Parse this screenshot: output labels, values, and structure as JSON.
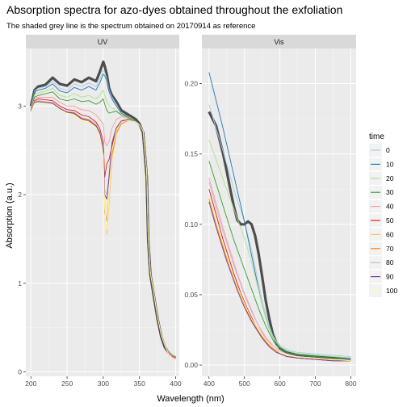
{
  "chart_data": {
    "type": "line",
    "title": "Absorption spectra for azo-dyes obtained throughout the exfoliation",
    "subtitle": "The shaded grey line is the spectrum obtained on 20170914 as reference",
    "xlabel": "Wavelength (nm)",
    "ylabel": "Absorption (a.u.)",
    "grid": true,
    "legend": {
      "title": "time",
      "position": "right",
      "entries": [
        "0",
        "10",
        "20",
        "30",
        "40",
        "50",
        "60",
        "70",
        "80",
        "90",
        "100"
      ]
    },
    "series_colors": {
      "0": "#a6cee3",
      "10": "#1f78b4",
      "20": "#b2df8a",
      "30": "#33a02c",
      "40": "#fb9a99",
      "50": "#e31a1c",
      "60": "#fdbf6f",
      "70": "#ff7f00",
      "80": "#cab2d6",
      "90": "#6a3d9a",
      "100": "#ffff99"
    },
    "reference_color": "#4d4d4d",
    "panels": [
      {
        "strip": "UV",
        "xlim": [
          193,
          405
        ],
        "ylim": [
          -0.05,
          3.65
        ],
        "xticks": [
          200,
          250,
          300,
          350,
          400
        ],
        "yticks": [
          0,
          1,
          2,
          3
        ],
        "x": [
          200,
          205,
          210,
          220,
          230,
          240,
          250,
          260,
          270,
          280,
          290,
          295,
          300,
          302,
          305,
          308,
          312,
          318,
          325,
          335,
          345,
          350,
          355,
          360,
          362,
          365,
          370,
          375,
          380,
          385,
          390,
          395,
          400
        ],
        "reference": [
          3.0,
          3.18,
          3.22,
          3.24,
          3.32,
          3.25,
          3.23,
          3.3,
          3.27,
          3.32,
          3.28,
          3.38,
          3.5,
          3.45,
          3.35,
          3.2,
          3.12,
          3.05,
          2.95,
          2.9,
          2.85,
          2.8,
          2.7,
          2.2,
          1.5,
          1.1,
          0.85,
          0.6,
          0.4,
          0.28,
          0.22,
          0.18,
          0.16
        ],
        "series": [
          {
            "name": "0",
            "values": [
              3.0,
              3.17,
              3.2,
              3.22,
              3.28,
              3.2,
              3.18,
              3.25,
              3.22,
              3.26,
              3.22,
              3.3,
              3.4,
              3.38,
              3.3,
              3.18,
              3.1,
              3.02,
              2.92,
              2.88,
              2.83,
              2.79,
              2.72,
              2.25,
              1.55,
              1.12,
              0.88,
              0.62,
              0.42,
              0.3,
              0.24,
              0.2,
              0.18
            ]
          },
          {
            "name": "10",
            "values": [
              3.0,
              3.16,
              3.18,
              3.2,
              3.25,
              3.17,
              3.15,
              3.21,
              3.18,
              3.22,
              3.18,
              3.26,
              3.36,
              3.34,
              3.28,
              3.16,
              3.08,
              3.0,
              2.92,
              2.88,
              2.83,
              2.79,
              2.72,
              2.25,
              1.55,
              1.12,
              0.88,
              0.62,
              0.42,
              0.3,
              0.23,
              0.19,
              0.17
            ]
          },
          {
            "name": "20",
            "values": [
              2.98,
              3.13,
              3.15,
              3.17,
              3.2,
              3.12,
              3.1,
              3.14,
              3.1,
              3.12,
              3.08,
              3.12,
              3.18,
              3.12,
              3.05,
              3.0,
              2.98,
              2.95,
              2.9,
              2.88,
              2.83,
              2.79,
              2.72,
              2.25,
              1.55,
              1.12,
              0.88,
              0.62,
              0.42,
              0.3,
              0.23,
              0.19,
              0.17
            ]
          },
          {
            "name": "30",
            "values": [
              2.97,
              3.1,
              3.12,
              3.14,
              3.16,
              3.08,
              3.06,
              3.08,
              3.05,
              3.06,
              3.02,
              3.04,
              3.08,
              3.02,
              2.95,
              2.92,
              2.93,
              2.94,
              2.9,
              2.87,
              2.83,
              2.79,
              2.72,
              2.25,
              1.55,
              1.12,
              0.88,
              0.62,
              0.42,
              0.3,
              0.22,
              0.18,
              0.16
            ]
          },
          {
            "name": "40",
            "values": [
              2.96,
              3.08,
              3.1,
              3.1,
              3.1,
              3.04,
              3.0,
              3.0,
              2.96,
              2.95,
              2.9,
              2.85,
              2.8,
              2.6,
              2.55,
              2.6,
              2.75,
              2.85,
              2.88,
              2.86,
              2.82,
              2.79,
              2.72,
              2.25,
              1.55,
              1.12,
              0.88,
              0.62,
              0.42,
              0.3,
              0.22,
              0.18,
              0.16
            ]
          },
          {
            "name": "50",
            "values": [
              2.95,
              3.06,
              3.08,
              3.07,
              3.06,
              3.0,
              2.96,
              2.95,
              2.9,
              2.88,
              2.82,
              2.75,
              2.6,
              2.2,
              2.35,
              2.4,
              2.55,
              2.72,
              2.82,
              2.85,
              2.82,
              2.79,
              2.72,
              2.25,
              1.55,
              1.12,
              0.88,
              0.62,
              0.42,
              0.3,
              0.22,
              0.18,
              0.16
            ]
          },
          {
            "name": "60",
            "values": [
              2.94,
              3.05,
              3.06,
              3.05,
              3.04,
              2.98,
              2.94,
              2.92,
              2.86,
              2.84,
              2.78,
              2.7,
              2.5,
              1.9,
              1.55,
              1.9,
              2.4,
              2.68,
              2.8,
              2.84,
              2.82,
              2.79,
              2.72,
              2.25,
              1.55,
              1.12,
              0.88,
              0.62,
              0.42,
              0.3,
              0.21,
              0.17,
              0.15
            ]
          },
          {
            "name": "70",
            "values": [
              2.94,
              3.04,
              3.05,
              3.04,
              3.03,
              2.97,
              2.93,
              2.91,
              2.85,
              2.83,
              2.77,
              2.68,
              2.45,
              1.8,
              1.7,
              2.0,
              2.45,
              2.7,
              2.8,
              2.84,
              2.82,
              2.79,
              2.72,
              2.25,
              1.55,
              1.12,
              0.88,
              0.62,
              0.42,
              0.3,
              0.21,
              0.17,
              0.15
            ]
          },
          {
            "name": "80",
            "values": [
              2.95,
              3.05,
              3.06,
              3.05,
              3.04,
              2.98,
              2.94,
              2.93,
              2.87,
              2.85,
              2.8,
              2.72,
              2.55,
              2.05,
              2.0,
              2.25,
              2.6,
              2.76,
              2.84,
              2.85,
              2.82,
              2.79,
              2.72,
              2.25,
              1.55,
              1.12,
              0.88,
              0.62,
              0.42,
              0.3,
              0.21,
              0.17,
              0.15
            ]
          },
          {
            "name": "90",
            "values": [
              2.94,
              3.04,
              3.05,
              3.04,
              3.03,
              2.97,
              2.93,
              2.92,
              2.86,
              2.84,
              2.78,
              2.7,
              2.52,
              2.0,
              1.95,
              2.2,
              2.58,
              2.75,
              2.83,
              2.85,
              2.82,
              2.79,
              2.72,
              2.25,
              1.55,
              1.12,
              0.88,
              0.62,
              0.42,
              0.3,
              0.2,
              0.16,
              0.14
            ]
          },
          {
            "name": "100",
            "values": [
              2.93,
              3.03,
              3.04,
              3.03,
              3.02,
              2.96,
              2.92,
              2.9,
              2.84,
              2.82,
              2.76,
              2.67,
              2.45,
              1.85,
              1.6,
              2.0,
              2.5,
              2.72,
              2.82,
              2.84,
              2.82,
              2.79,
              2.72,
              2.25,
              1.55,
              1.12,
              0.88,
              0.62,
              0.42,
              0.3,
              0.2,
              0.16,
              0.14
            ]
          }
        ]
      },
      {
        "strip": "Vis",
        "xlim": [
          380,
          815
        ],
        "ylim": [
          -0.008,
          0.225
        ],
        "xticks": [
          400,
          500,
          600,
          700,
          800
        ],
        "yticks": [
          0.0,
          0.05,
          0.1,
          0.15,
          0.2
        ],
        "x": [
          400,
          410,
          420,
          430,
          440,
          450,
          460,
          470,
          480,
          490,
          500,
          510,
          520,
          530,
          540,
          550,
          560,
          570,
          580,
          590,
          600,
          620,
          650,
          700,
          750,
          800
        ],
        "reference": [
          0.18,
          0.175,
          0.17,
          0.16,
          0.15,
          0.138,
          0.125,
          0.113,
          0.103,
          0.1,
          0.1,
          0.102,
          0.1,
          0.092,
          0.079,
          0.063,
          0.046,
          0.033,
          0.022,
          0.016,
          0.012,
          0.009,
          0.007,
          0.006,
          0.005,
          0.004
        ],
        "series": [
          {
            "name": "0",
            "values": [
              0.185,
              0.177,
              0.168,
              0.16,
              0.152,
              0.143,
              0.134,
              0.125,
              0.117,
              0.11,
              0.102,
              0.092,
              0.082,
              0.07,
              0.058,
              0.046,
              0.036,
              0.028,
              0.021,
              0.017,
              0.014,
              0.011,
              0.009,
              0.008,
              0.007,
              0.006
            ]
          },
          {
            "name": "10",
            "values": [
              0.208,
              0.198,
              0.188,
              0.178,
              0.168,
              0.157,
              0.146,
              0.135,
              0.124,
              0.113,
              0.102,
              0.09,
              0.078,
              0.066,
              0.054,
              0.043,
              0.034,
              0.026,
              0.02,
              0.016,
              0.013,
              0.01,
              0.008,
              0.007,
              0.006,
              0.005
            ]
          },
          {
            "name": "20",
            "values": [
              0.16,
              0.153,
              0.146,
              0.139,
              0.132,
              0.125,
              0.118,
              0.111,
              0.104,
              0.097,
              0.09,
              0.082,
              0.073,
              0.063,
              0.053,
              0.043,
              0.034,
              0.026,
              0.02,
              0.016,
              0.013,
              0.01,
              0.008,
              0.007,
              0.006,
              0.005
            ]
          },
          {
            "name": "30",
            "values": [
              0.145,
              0.137,
              0.129,
              0.121,
              0.113,
              0.105,
              0.097,
              0.089,
              0.082,
              0.075,
              0.068,
              0.061,
              0.054,
              0.047,
              0.04,
              0.034,
              0.028,
              0.023,
              0.018,
              0.014,
              0.012,
              0.009,
              0.007,
              0.006,
              0.005,
              0.004
            ]
          },
          {
            "name": "40",
            "values": [
              0.133,
              0.124,
              0.115,
              0.106,
              0.097,
              0.089,
              0.081,
              0.073,
              0.065,
              0.058,
              0.051,
              0.045,
              0.039,
              0.033,
              0.028,
              0.023,
              0.019,
              0.016,
              0.013,
              0.011,
              0.009,
              0.007,
              0.005,
              0.004,
              0.004,
              0.003
            ]
          },
          {
            "name": "50",
            "values": [
              0.125,
              0.116,
              0.107,
              0.098,
              0.089,
              0.081,
              0.073,
              0.065,
              0.058,
              0.051,
              0.045,
              0.039,
              0.034,
              0.029,
              0.025,
              0.021,
              0.017,
              0.014,
              0.012,
              0.01,
              0.008,
              0.006,
              0.005,
              0.004,
              0.003,
              0.003
            ]
          },
          {
            "name": "60",
            "values": [
              0.12,
              0.111,
              0.102,
              0.094,
              0.086,
              0.078,
              0.07,
              0.063,
              0.056,
              0.05,
              0.044,
              0.038,
              0.033,
              0.028,
              0.024,
              0.02,
              0.017,
              0.014,
              0.012,
              0.01,
              0.008,
              0.006,
              0.005,
              0.004,
              0.003,
              0.003
            ]
          },
          {
            "name": "70",
            "values": [
              0.118,
              0.109,
              0.1,
              0.092,
              0.084,
              0.076,
              0.069,
              0.062,
              0.055,
              0.049,
              0.043,
              0.037,
              0.032,
              0.028,
              0.024,
              0.02,
              0.017,
              0.014,
              0.012,
              0.01,
              0.008,
              0.006,
              0.005,
              0.004,
              0.003,
              0.003
            ]
          },
          {
            "name": "80",
            "values": [
              0.13,
              0.121,
              0.112,
              0.103,
              0.095,
              0.087,
              0.079,
              0.071,
              0.064,
              0.057,
              0.05,
              0.044,
              0.038,
              0.033,
              0.028,
              0.024,
              0.02,
              0.017,
              0.014,
              0.012,
              0.01,
              0.008,
              0.006,
              0.005,
              0.004,
              0.004
            ]
          },
          {
            "name": "90",
            "values": [
              0.116,
              0.107,
              0.098,
              0.09,
              0.082,
              0.074,
              0.067,
              0.06,
              0.053,
              0.047,
              0.041,
              0.036,
              0.031,
              0.027,
              0.023,
              0.019,
              0.016,
              0.013,
              0.011,
              0.009,
              0.008,
              0.006,
              0.005,
              0.004,
              0.003,
              0.003
            ]
          },
          {
            "name": "100",
            "values": [
              0.12,
              0.111,
              0.102,
              0.094,
              0.086,
              0.078,
              0.07,
              0.063,
              0.056,
              0.05,
              0.044,
              0.038,
              0.033,
              0.029,
              0.025,
              0.021,
              0.018,
              0.015,
              0.013,
              0.011,
              0.009,
              0.007,
              0.006,
              0.005,
              0.004,
              0.003
            ]
          }
        ]
      }
    ]
  }
}
